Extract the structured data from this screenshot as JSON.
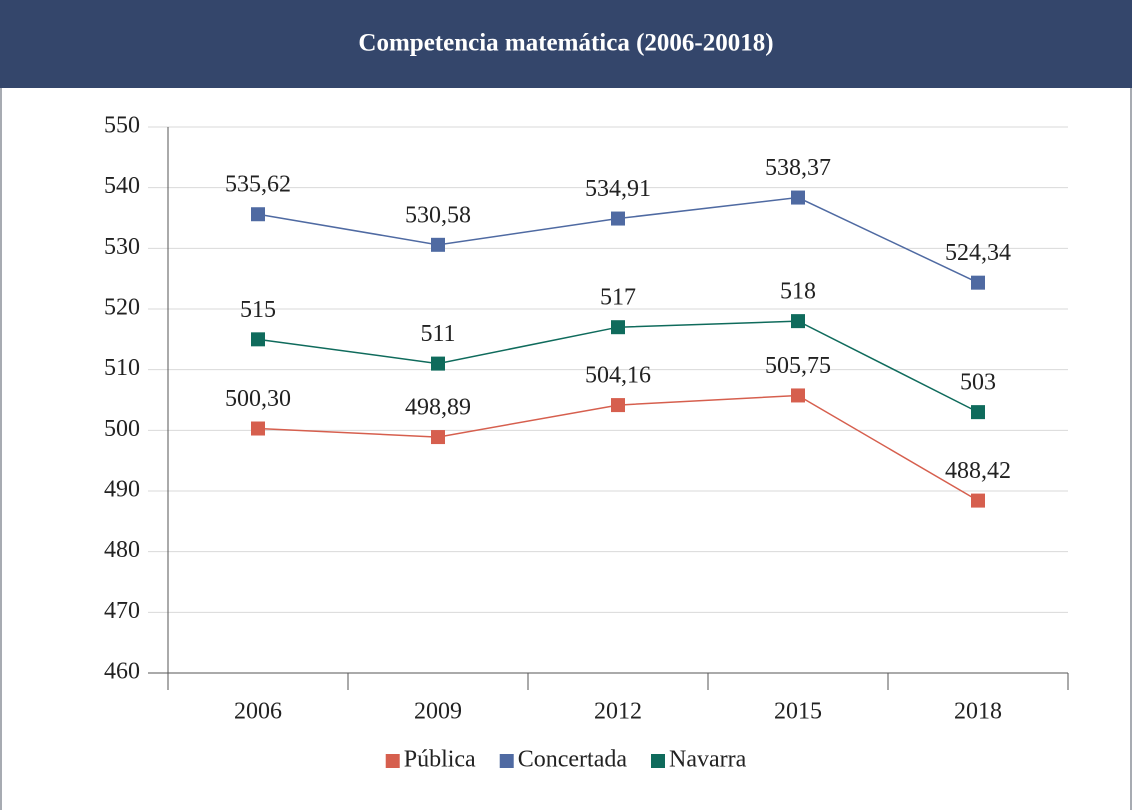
{
  "chart_data": {
    "type": "line",
    "title": "Competencia matemática (2006-20018)",
    "categories": [
      "2006",
      "2009",
      "2012",
      "2015",
      "2018"
    ],
    "series": [
      {
        "name": "Pública",
        "color": "#d65f4e",
        "values": [
          500.3,
          498.89,
          504.16,
          505.75,
          488.42
        ],
        "value_labels": [
          "500,30",
          "498,89",
          "504,16",
          "505,75",
          "488,42"
        ]
      },
      {
        "name": "Concertada",
        "color": "#4f6aa2",
        "values": [
          535.62,
          530.58,
          534.91,
          538.37,
          524.34
        ],
        "value_labels": [
          "535,62",
          "530,58",
          "534,91",
          "538,37",
          "524,34"
        ]
      },
      {
        "name": "Navarra",
        "color": "#0f6b5c",
        "values": [
          515,
          511,
          517,
          518,
          503
        ]
      }
    ],
    "ylim": [
      460,
      550
    ],
    "yticks": [
      460,
      470,
      480,
      490,
      500,
      510,
      520,
      530,
      540,
      550
    ],
    "grid": true,
    "legend": "bottom"
  }
}
